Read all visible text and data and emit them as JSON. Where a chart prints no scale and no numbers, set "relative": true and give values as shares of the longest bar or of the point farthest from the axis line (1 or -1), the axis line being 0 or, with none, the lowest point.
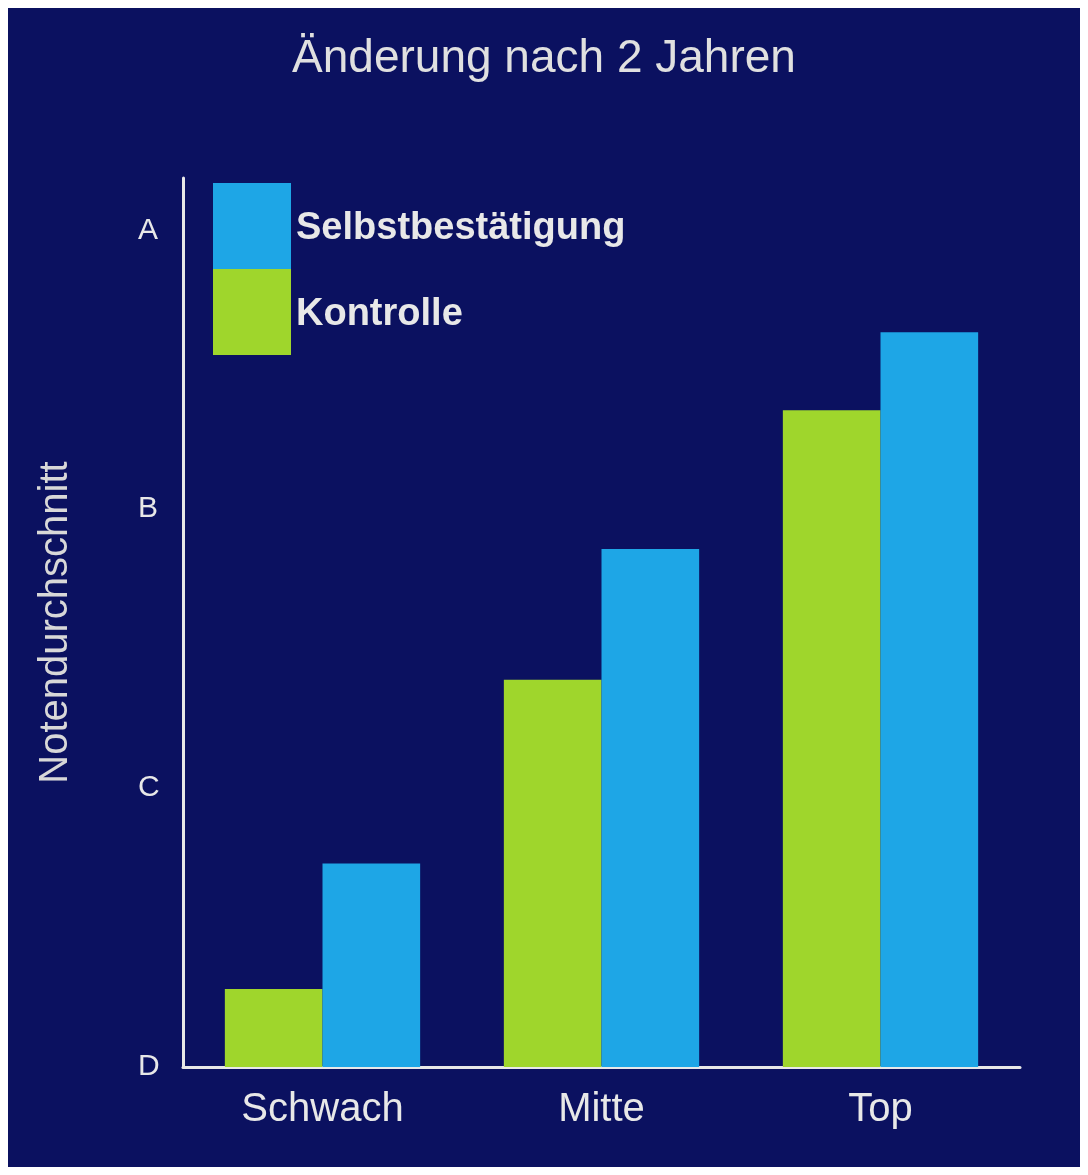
{
  "chart_data": {
    "type": "bar",
    "title": "Änderung nach 2 Jahren",
    "ylabel": "Notendurchschnitt",
    "relative": true,
    "categories": [
      "Schwach",
      "Mitte",
      "Top"
    ],
    "series": [
      {
        "name": "Kontrolle",
        "color": "#9fd62c",
        "values": [
          0.106,
          0.527,
          0.894
        ]
      },
      {
        "name": "Selbstbestätigung",
        "color": "#1ea6e6",
        "values": [
          0.277,
          0.705,
          1
        ]
      }
    ],
    "annotations": [
      "D",
      "C",
      "B",
      "A"
    ],
    "grid": false,
    "legend": "top left"
  }
}
